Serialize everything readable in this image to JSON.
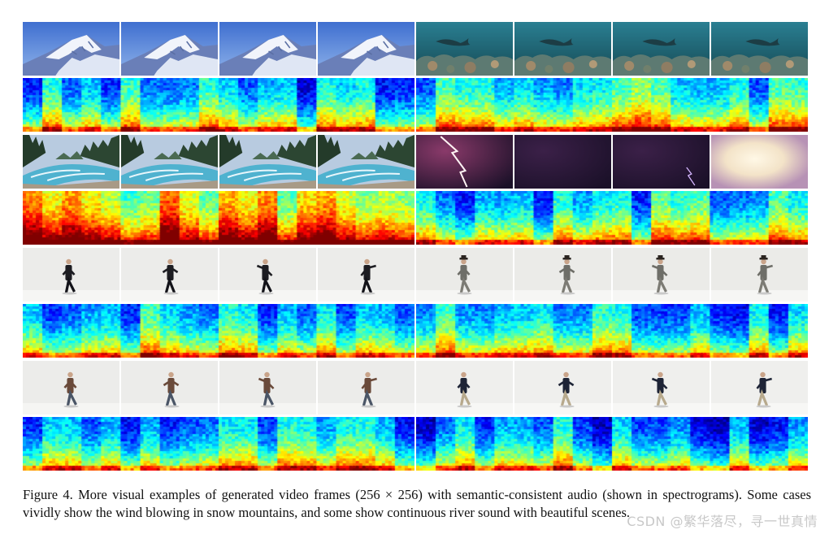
{
  "caption": {
    "label": "Figure 4.",
    "text": "More visual examples of generated video frames (256 × 256) with semantic-consistent audio (shown in spectrograms). Some cases vividly show the wind blowing in snow mountains, and some show continuous river sound with beautiful scenes."
  },
  "watermark": "CSDN @繁华落尽，寻一世真情",
  "examples": [
    {
      "column": "left",
      "row": 0,
      "scene": "snow-mountain",
      "frames": 4,
      "spectrogram_level": 0.25
    },
    {
      "column": "right",
      "row": 0,
      "scene": "underwater-reef",
      "frames": 4,
      "spectrogram_level": 0.35
    },
    {
      "column": "left",
      "row": 1,
      "scene": "mountain-river",
      "frames": 4,
      "spectrogram_level": 0.6
    },
    {
      "column": "right",
      "row": 1,
      "scene": "lightning-storm",
      "frames": 4,
      "spectrogram_level": 0.3
    },
    {
      "column": "left",
      "row": 2,
      "scene": "dancer-dark-outfit",
      "frames": 4,
      "spectrogram_level": 0.3
    },
    {
      "column": "right",
      "row": 2,
      "scene": "dancer-hat",
      "frames": 4,
      "spectrogram_level": 0.28
    },
    {
      "column": "left",
      "row": 3,
      "scene": "dancer-brown-jacket",
      "frames": 4,
      "spectrogram_level": 0.25
    },
    {
      "column": "right",
      "row": 3,
      "scene": "dancer-navy-jacket",
      "frames": 4,
      "spectrogram_level": 0.22
    }
  ]
}
